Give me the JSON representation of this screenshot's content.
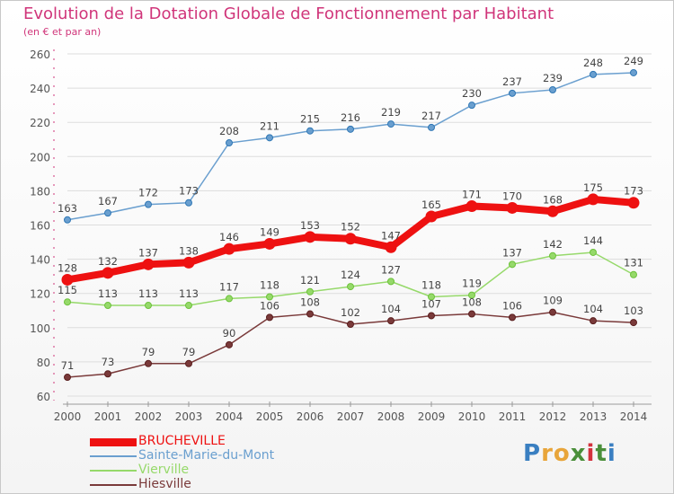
{
  "header": {
    "title": "Evolution de la Dotation Globale de Fonctionnement par Habitant",
    "subtitle": "(en € et par an)"
  },
  "colors": {
    "title": "#d0357a",
    "axis": "#555555",
    "grid": "#dddddd"
  },
  "logo": {
    "text": "Proxiti",
    "letters": [
      {
        "ch": "P",
        "color": "#3a7fc1"
      },
      {
        "ch": "r",
        "color": "#e8a53a"
      },
      {
        "ch": "o",
        "color": "#e8a53a"
      },
      {
        "ch": "x",
        "color": "#4a8f3a"
      },
      {
        "ch": "i",
        "color": "#d3323d"
      },
      {
        "ch": "t",
        "color": "#4a8f3a"
      },
      {
        "ch": "i",
        "color": "#3a7fc1"
      }
    ]
  },
  "chart_data": {
    "type": "line",
    "title": "Evolution de la Dotation Globale de Fonctionnement par Habitant",
    "subtitle": "(en € et par an)",
    "x": [
      2000,
      2001,
      2002,
      2003,
      2004,
      2005,
      2006,
      2007,
      2008,
      2009,
      2010,
      2011,
      2012,
      2013,
      2014
    ],
    "ylim": [
      60,
      260
    ],
    "yticks": [
      60,
      80,
      100,
      120,
      140,
      160,
      180,
      200,
      220,
      240,
      260
    ],
    "grid": true,
    "legend_position": "bottom-left",
    "series": [
      {
        "name": "Sainte-Marie-du-Mont",
        "color": "#6a9fcf",
        "marker": "#2f77b5",
        "emphasis": false,
        "values": [
          163,
          167,
          172,
          173,
          208,
          211,
          215,
          216,
          219,
          217,
          230,
          237,
          239,
          248,
          249
        ]
      },
      {
        "name": "Vierville",
        "color": "#96d96a",
        "marker": "#6cc23a",
        "emphasis": false,
        "values": [
          115,
          113,
          113,
          113,
          117,
          118,
          121,
          124,
          127,
          118,
          119,
          137,
          142,
          144,
          131
        ]
      },
      {
        "name": "Hiesville",
        "color": "#7a3a3a",
        "marker": "#5a1e1e",
        "emphasis": false,
        "values": [
          71,
          73,
          79,
          79,
          90,
          106,
          108,
          102,
          104,
          107,
          108,
          106,
          109,
          104,
          103
        ]
      },
      {
        "name": "BRUCHEVILLE",
        "color": "#ee1111",
        "marker": "#ee1111",
        "emphasis": true,
        "values": [
          128,
          132,
          137,
          138,
          146,
          149,
          153,
          152,
          147,
          165,
          171,
          170,
          168,
          175,
          173
        ]
      }
    ],
    "legend_order": [
      "BRUCHEVILLE",
      "Sainte-Marie-du-Mont",
      "Vierville",
      "Hiesville"
    ]
  }
}
